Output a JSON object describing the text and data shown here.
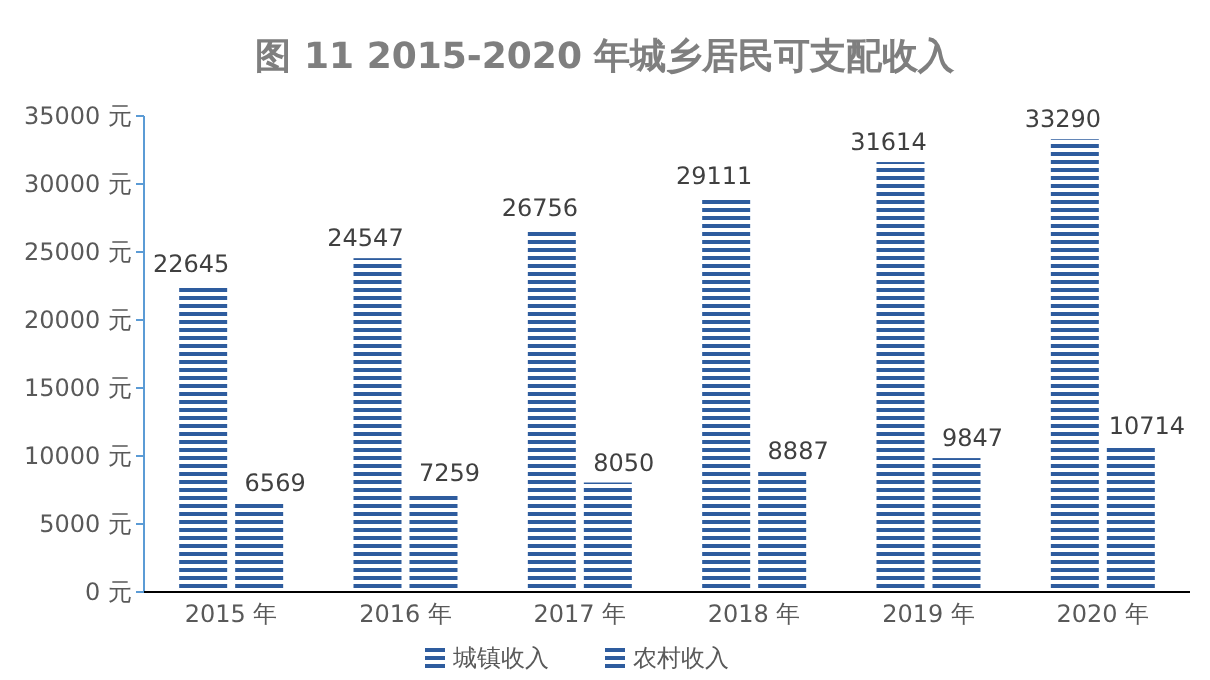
{
  "chart_data": {
    "type": "bar",
    "title": "图 11 2015-2020 年城乡居民可支配收入",
    "categories": [
      "2015 年",
      "2016 年",
      "2017 年",
      "2018 年",
      "2019 年",
      "2020 年"
    ],
    "series": [
      {
        "name": "城镇收入",
        "color": "#2e5c9e",
        "values": [
          22645,
          24547,
          26756,
          29111,
          31614,
          33290
        ]
      },
      {
        "name": "农村收入",
        "color": "#2e5c9e",
        "values": [
          6569,
          7259,
          8050,
          8887,
          9847,
          10714
        ]
      }
    ],
    "ylim": [
      0,
      35000
    ],
    "yticks": [
      {
        "value": 0,
        "label": "0 元"
      },
      {
        "value": 5000,
        "label": "5000 元"
      },
      {
        "value": 10000,
        "label": "10000 元"
      },
      {
        "value": 15000,
        "label": "15000 元"
      },
      {
        "value": 20000,
        "label": "20000 元"
      },
      {
        "value": 25000,
        "label": "25000 元"
      },
      {
        "value": 30000,
        "label": "30000 元"
      },
      {
        "value": 35000,
        "label": "35000 元"
      }
    ],
    "data_labels": true,
    "legend": "bottom"
  }
}
